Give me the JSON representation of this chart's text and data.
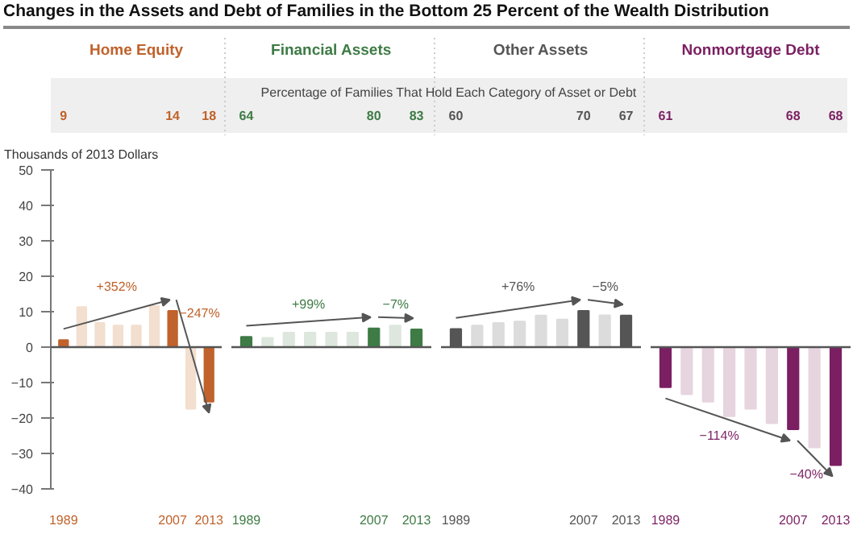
{
  "chart_data": [
    {
      "type": "other",
      "title": "Changes in the Assets and Debt of Families in the Bottom 25 Percent of the Wealth Distribution",
      "annotations": [
        "Percentage of Families That Hold Each Category of Asset or Debt"
      ]
    },
    {
      "type": "bar",
      "title": "Home Equity",
      "ylabel": "Thousands of 2013 Dollars",
      "categories": [
        "1989",
        null,
        null,
        null,
        null,
        null,
        "2007",
        null,
        "2013"
      ],
      "values": [
        2.0,
        11.3,
        6.8,
        6.1,
        6.1,
        11.6,
        10.2,
        -17.4,
        -15.4
      ],
      "colors": [
        "#c0622b",
        "#f2dfcf",
        "#f2dfcf",
        "#f2dfcf",
        "#f2dfcf",
        "#f2dfcf",
        "#c0622b",
        "#f2dfcf",
        "#c0622b"
      ],
      "ylim": [
        -40,
        50
      ],
      "yticks": [
        -40,
        -30,
        -20,
        -10,
        0,
        10,
        20,
        30,
        40,
        50
      ],
      "ref_lines": [
        {
          "axis": "y",
          "value": 0,
          "color": "#555555"
        }
      ],
      "annotations": [
        "9",
        "14",
        "18",
        "+352%",
        "−247%"
      ]
    },
    {
      "type": "bar",
      "title": "Financial Assets",
      "categories": [
        "1989",
        null,
        null,
        null,
        null,
        null,
        "2007",
        null,
        "2013"
      ],
      "values": [
        2.9,
        2.6,
        4.1,
        4.1,
        4.1,
        4.1,
        5.3,
        6.1,
        5.0
      ],
      "colors": [
        "#3e7b45",
        "#dde7dd",
        "#dde7dd",
        "#dde7dd",
        "#dde7dd",
        "#dde7dd",
        "#3e7b45",
        "#dde7dd",
        "#3e7b45"
      ],
      "ylim": [
        -40,
        50
      ],
      "yticks": [
        -40,
        -30,
        -20,
        -10,
        0,
        10,
        20,
        30,
        40,
        50
      ],
      "tick_labels": "x",
      "ref_lines": [
        {
          "axis": "y",
          "value": 0,
          "color": "#555555"
        }
      ],
      "annotations": [
        "64",
        "80",
        "83",
        "+99%",
        "−7%"
      ]
    },
    {
      "type": "bar",
      "title": "Other Assets",
      "categories": [
        "1989",
        null,
        null,
        null,
        null,
        null,
        "2007",
        null,
        "2013"
      ],
      "values": [
        5.1,
        6.1,
        6.8,
        7.2,
        8.9,
        7.8,
        10.2,
        9.0,
        8.9
      ],
      "colors": [
        "#555555",
        "#dcdcdc",
        "#dcdcdc",
        "#dcdcdc",
        "#dcdcdc",
        "#dcdcdc",
        "#555555",
        "#dcdcdc",
        "#555555"
      ],
      "ylim": [
        -40,
        50
      ],
      "yticks": [
        -40,
        -30,
        -20,
        -10,
        0,
        10,
        20,
        30,
        40,
        50
      ],
      "tick_labels": "x",
      "ref_lines": [
        {
          "axis": "y",
          "value": 0,
          "color": "#555555"
        }
      ],
      "annotations": [
        "60",
        "70",
        "67",
        "+76%",
        "−5%"
      ]
    },
    {
      "type": "bar",
      "title": "Nonmortgage Debt",
      "categories": [
        "1989",
        null,
        null,
        null,
        null,
        null,
        "2007",
        null,
        "2013"
      ],
      "values": [
        -11.3,
        -13.3,
        -15.4,
        -19.5,
        -17.4,
        -21.5,
        -23.2,
        -28.3,
        -33.3
      ],
      "colors": [
        "#7b1f62",
        "#e6d4df",
        "#e6d4df",
        "#e6d4df",
        "#e6d4df",
        "#e6d4df",
        "#7b1f62",
        "#e6d4df",
        "#7b1f62"
      ],
      "ylim": [
        -40,
        50
      ],
      "yticks": [
        -40,
        -30,
        -20,
        -10,
        0,
        10,
        20,
        30,
        40,
        50
      ],
      "tick_labels": "x",
      "ref_lines": [
        {
          "axis": "y",
          "value": 0,
          "color": "#555555"
        }
      ],
      "annotations": [
        "61",
        "68",
        "68",
        "−114%",
        "−40%"
      ]
    }
  ]
}
